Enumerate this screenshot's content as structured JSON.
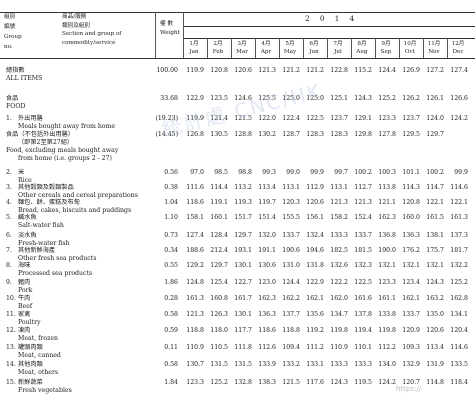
{
  "header": {
    "group_col": [
      "組別",
      "編號",
      "Group",
      "no."
    ],
    "section_col": [
      "商品/服務",
      "類別及組別",
      "Section and group of",
      "commodity/service"
    ],
    "weight_col": [
      "權 數",
      "Weight"
    ],
    "year": "2 0 1 4",
    "months_cn": [
      "1月",
      "2月",
      "3月",
      "4月",
      "5月",
      "6月",
      "7月",
      "8月",
      "9月",
      "10月",
      "11月",
      "12月"
    ],
    "months_en": [
      "Jan",
      "Feb",
      "Mar",
      "Apr",
      "May",
      "Jun",
      "Jul",
      "Aug",
      "Sep",
      "Oct",
      "Nov",
      "Dec"
    ]
  },
  "rows": [
    {
      "no": "",
      "cn": "總指數",
      "en": "ALL ITEMS",
      "weight": "100.00",
      "values": [
        "119.9",
        "120.8",
        "120.6",
        "121.3",
        "121.2",
        "121.2",
        "122.8",
        "115.2",
        "124.4",
        "126.9",
        "127.2",
        "127.4"
      ]
    },
    {
      "no": "",
      "cn": "食品",
      "en": "FOOD",
      "weight": "33.68",
      "values": [
        "122.9",
        "123.5",
        "124.6",
        "125.5",
        "125.0",
        "125.0",
        "125.1",
        "124.3",
        "125.2",
        "126.2",
        "126.1",
        "126.6"
      ]
    },
    {
      "no": "1.",
      "cn": "外出用膳",
      "en": "Meals bought away from home",
      "weight": "(19.23)",
      "values": [
        "119.9",
        "121.4",
        "121.5",
        "122.0",
        "122.4",
        "122.5",
        "123.7",
        "129.1",
        "123.3",
        "123.7",
        "124.0",
        "124.2"
      ]
    },
    {
      "no": "",
      "cn": "食品（不包括外出用膳）",
      "cn2": "（即第2至第27組）",
      "en": "Food, excluding meals bought away",
      "en2": "from home (i.e. groups 2 - 27)",
      "weight": "(14.45)",
      "values": [
        "126.8",
        "130.5",
        "128.8",
        "130.2",
        "128.7",
        "128.3",
        "128.3",
        "129.8",
        "127.8",
        "129.5",
        "129.7",
        ""
      ]
    },
    {
      "no": "2.",
      "cn": "米",
      "en": "Rice",
      "weight": "0.56",
      "values": [
        "97.0",
        "98.5",
        "98.8",
        "99.3",
        "99.0",
        "99.9",
        "99.7",
        "100.2",
        "100.3",
        "101.1",
        "100.2",
        "99.9"
      ]
    },
    {
      "no": "3.",
      "cn": "其他穀類及穀類製品",
      "en": "Other cereals and cereal preparations",
      "weight": "0.38",
      "values": [
        "111.6",
        "114.4",
        "113.2",
        "113.4",
        "113.1",
        "112.9",
        "113.1",
        "112.7",
        "113.8",
        "114.3",
        "114.7",
        "114.6"
      ]
    },
    {
      "no": "4.",
      "cn": "麵包、餅、蛋糕及布甸",
      "en": "Bread, cakes, biscuits and puddings",
      "weight": "1.04",
      "values": [
        "118.6",
        "119.1",
        "119.3",
        "119.7",
        "120.3",
        "120.6",
        "121.3",
        "121.3",
        "121.1",
        "120.8",
        "122.1",
        "122.1"
      ]
    },
    {
      "no": "5.",
      "cn": "鹹水魚",
      "en": "Salt-water fish",
      "weight": "1.10",
      "values": [
        "158.1",
        "160.1",
        "151.7",
        "151.4",
        "155.5",
        "156.1",
        "158.2",
        "152.4",
        "162.3",
        "160.0",
        "161.5",
        "161.3"
      ]
    },
    {
      "no": "6.",
      "cn": "淡水魚",
      "en": "Fresh-water fish",
      "weight": "0.73",
      "values": [
        "127.4",
        "128.4",
        "129.7",
        "132.0",
        "133.7",
        "132.4",
        "133.3",
        "133.7",
        "136.8",
        "136.3",
        "138.1",
        "137.3"
      ]
    },
    {
      "no": "7.",
      "cn": "其他新鮮海產",
      "en": "Other fresh sea products",
      "weight": "0.34",
      "values": [
        "188.6",
        "212.4",
        "193.1",
        "191.1",
        "190.6",
        "194.6",
        "182.5",
        "181.5",
        "190.0",
        "176.2",
        "175.7",
        "181.7"
      ]
    },
    {
      "no": "8.",
      "cn": "海味",
      "en": "Processed sea products",
      "weight": "0.55",
      "values": [
        "129.2",
        "129.7",
        "130.1",
        "130.6",
        "131.0",
        "131.8",
        "132.6",
        "132.3",
        "132.1",
        "132.1",
        "132.1",
        "132.2"
      ]
    },
    {
      "no": "9.",
      "cn": "豬肉",
      "en": "Pork",
      "weight": "1.86",
      "values": [
        "124.8",
        "125.4",
        "122.7",
        "123.0",
        "124.4",
        "122.9",
        "122.2",
        "122.5",
        "123.3",
        "123.4",
        "124.3",
        "125.2"
      ]
    },
    {
      "no": "10.",
      "cn": "牛肉",
      "en": "Beef",
      "weight": "0.28",
      "values": [
        "161.3",
        "160.8",
        "161.7",
        "162.3",
        "162.2",
        "162.1",
        "162.0",
        "161.6",
        "161.1",
        "162.1",
        "163.2",
        "162.8"
      ]
    },
    {
      "no": "11.",
      "cn": "家禽",
      "en": "Poultry",
      "weight": "0.58",
      "values": [
        "121.3",
        "126.3",
        "130.1",
        "136.3",
        "137.7",
        "135.6",
        "134.7",
        "137.8",
        "133.8",
        "133.7",
        "135.0",
        "134.1"
      ]
    },
    {
      "no": "12.",
      "cn": "凍肉",
      "en": "Meat, frozen",
      "weight": "0.59",
      "values": [
        "118.8",
        "118.0",
        "117.7",
        "118.6",
        "118.8",
        "119.2",
        "119.8",
        "119.4",
        "119.8",
        "120.9",
        "120.6",
        "120.4"
      ]
    },
    {
      "no": "13.",
      "cn": "罐頭肉類",
      "en": "Meat, canned",
      "weight": "0.11",
      "values": [
        "110.9",
        "110.5",
        "111.8",
        "112.6",
        "109.4",
        "111.2",
        "110.9",
        "110.1",
        "112.2",
        "109.3",
        "113.4",
        "114.6"
      ]
    },
    {
      "no": "14.",
      "cn": "其他肉類",
      "en": "Meat, others",
      "weight": "0.58",
      "values": [
        "130.7",
        "131.5",
        "131.5",
        "133.9",
        "133.2",
        "133.1",
        "133.3",
        "133.3",
        "134.0",
        "132.9",
        "131.9",
        "133.5"
      ]
    },
    {
      "no": "15.",
      "cn": "新鮮蔬菜",
      "en": "Fresh vegetables",
      "weight": "1.84",
      "values": [
        "123.3",
        "125.2",
        "132.8",
        "138.3",
        "121.5",
        "117.6",
        "124.3",
        "119.5",
        "124.2",
        "120.7",
        "114.8",
        "118.4"
      ]
    }
  ],
  "watermark": "統計處 CNC/HK",
  "corner_mark": "https://"
}
